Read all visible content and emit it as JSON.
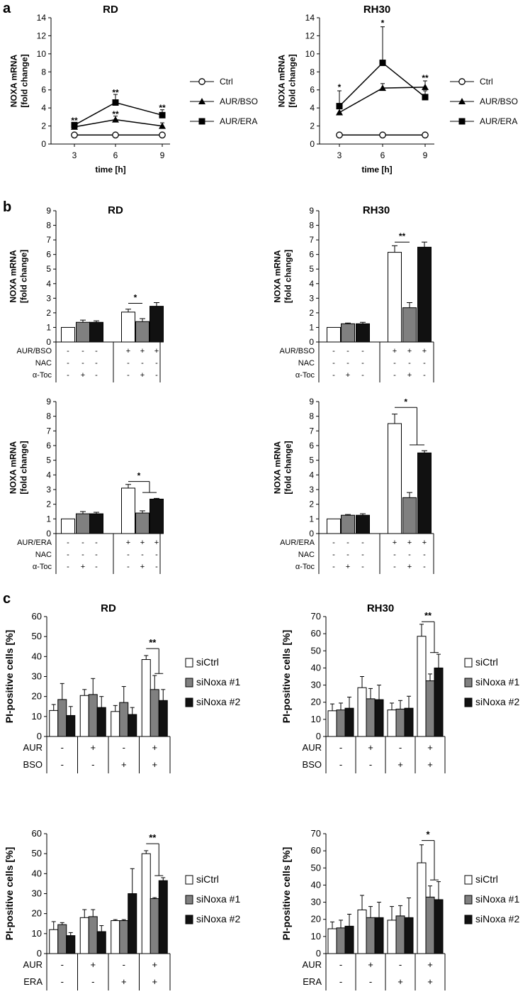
{
  "panel_labels": [
    "a",
    "b",
    "c"
  ],
  "chart_data": [
    {
      "id": "a-rd",
      "panel": "a",
      "type": "line",
      "title": "RD",
      "xlabel": "time [h]",
      "ylabel": [
        "NOXA mRNA",
        "[fold change]"
      ],
      "x": [
        3,
        6,
        9
      ],
      "ylim": [
        0,
        14
      ],
      "yticks": [
        0,
        2,
        4,
        6,
        8,
        10,
        12,
        14
      ],
      "series": [
        {
          "name": "Ctrl",
          "marker": "circle",
          "values": [
            1,
            1,
            1
          ],
          "err": [
            0,
            0,
            0
          ]
        },
        {
          "name": "AUR/BSO",
          "marker": "triangle",
          "values": [
            1.9,
            2.7,
            2.0
          ],
          "err": [
            0.25,
            0.4,
            0.35
          ]
        },
        {
          "name": "AUR/ERA",
          "marker": "square",
          "values": [
            2.1,
            4.6,
            3.2
          ],
          "err": [
            0.3,
            0.9,
            0.6
          ]
        }
      ],
      "annotations": [
        {
          "x": 3,
          "y": 2.6,
          "text": "**"
        },
        {
          "x": 6,
          "y": 5.7,
          "text": "**"
        },
        {
          "x": 6,
          "y": 3.3,
          "text": "**"
        },
        {
          "x": 9,
          "y": 4.0,
          "text": "**"
        }
      ]
    },
    {
      "id": "a-rh30",
      "panel": "a",
      "type": "line",
      "title": "RH30",
      "xlabel": "time [h]",
      "ylabel": [
        "NOXA mRNA",
        "[fold change]"
      ],
      "x": [
        3,
        6,
        9
      ],
      "ylim": [
        0,
        14
      ],
      "yticks": [
        0,
        2,
        4,
        6,
        8,
        10,
        12,
        14
      ],
      "series": [
        {
          "name": "Ctrl",
          "marker": "circle",
          "values": [
            1,
            1,
            1
          ],
          "err": [
            0,
            0,
            0
          ]
        },
        {
          "name": "AUR/BSO",
          "marker": "triangle",
          "values": [
            3.5,
            6.2,
            6.3
          ],
          "err": [
            0.4,
            0.5,
            0.7
          ]
        },
        {
          "name": "AUR/ERA",
          "marker": "square",
          "values": [
            4.2,
            9.0,
            5.2
          ],
          "err": [
            1.7,
            4.0,
            0.7
          ]
        }
      ],
      "annotations": [
        {
          "x": 3,
          "y": 6.3,
          "text": "*"
        },
        {
          "x": 6,
          "y": 13.4,
          "text": "*"
        },
        {
          "x": 9,
          "y": 7.3,
          "text": "**"
        }
      ]
    },
    {
      "id": "b-rd-bso",
      "panel": "b",
      "type": "bar",
      "title": "RD",
      "ylabel": [
        "NOXA mRNA",
        "[fold change]"
      ],
      "ylim": [
        0,
        9
      ],
      "yticks": [
        0,
        1,
        2,
        3,
        4,
        5,
        6,
        7,
        8,
        9
      ],
      "fills": [
        "#ffffff",
        "#808080",
        "#111111",
        "#ffffff",
        "#808080",
        "#111111"
      ],
      "values": [
        1.0,
        1.35,
        1.35,
        2.05,
        1.4,
        2.45
      ],
      "err": [
        0,
        0.15,
        0.1,
        0.2,
        0.2,
        0.25
      ],
      "rows": [
        {
          "label": "AUR/BSO",
          "cells": [
            "-",
            "-",
            "-",
            "+",
            "+",
            "+"
          ]
        },
        {
          "label": "NAC",
          "cells": [
            "-",
            "-",
            "-",
            "-",
            "-",
            "-"
          ]
        },
        {
          "label": "α-Toc",
          "cells": [
            "-",
            "+",
            "-",
            "-",
            "+",
            "-"
          ]
        }
      ],
      "sig": [
        {
          "from": 3,
          "to": 4,
          "y": 2.65,
          "text": "*"
        }
      ]
    },
    {
      "id": "b-rh30-bso",
      "panel": "b",
      "type": "bar",
      "title": "RH30",
      "ylabel": [
        "NOXA mRNA",
        "[fold change]"
      ],
      "ylim": [
        0,
        9
      ],
      "yticks": [
        0,
        1,
        2,
        3,
        4,
        5,
        6,
        7,
        8,
        9
      ],
      "fills": [
        "#ffffff",
        "#808080",
        "#111111",
        "#ffffff",
        "#808080",
        "#111111"
      ],
      "values": [
        1.0,
        1.25,
        1.25,
        6.15,
        2.35,
        6.5
      ],
      "err": [
        0,
        0.05,
        0.1,
        0.45,
        0.35,
        0.35
      ],
      "rows": [
        {
          "label": "AUR/BSO",
          "cells": [
            "-",
            "-",
            "-",
            "+",
            "+",
            "+"
          ]
        },
        {
          "label": "NAC",
          "cells": [
            "-",
            "-",
            "-",
            "-",
            "-",
            "-"
          ]
        },
        {
          "label": "α-Toc",
          "cells": [
            "-",
            "+",
            "-",
            "-",
            "+",
            "-"
          ]
        }
      ],
      "sig": [
        {
          "from": 3,
          "to": 4,
          "y": 6.85,
          "text": "**"
        }
      ]
    },
    {
      "id": "b-rd-era",
      "panel": "b",
      "type": "bar",
      "title": "",
      "ylabel": [
        "NOXA mRNA",
        "[fold change]"
      ],
      "ylim": [
        0,
        9
      ],
      "yticks": [
        0,
        1,
        2,
        3,
        4,
        5,
        6,
        7,
        8,
        9
      ],
      "fills": [
        "#ffffff",
        "#808080",
        "#111111",
        "#ffffff",
        "#808080",
        "#111111"
      ],
      "values": [
        1.0,
        1.35,
        1.35,
        3.1,
        1.4,
        2.35
      ],
      "err": [
        0,
        0.15,
        0.1,
        0.25,
        0.15,
        0.05
      ],
      "rows": [
        {
          "label": "AUR/ERA",
          "cells": [
            "-",
            "-",
            "-",
            "+",
            "+",
            "+"
          ]
        },
        {
          "label": "NAC",
          "cells": [
            "-",
            "-",
            "-",
            "-",
            "-",
            "-"
          ]
        },
        {
          "label": "α-Toc",
          "cells": [
            "-",
            "+",
            "-",
            "-",
            "+",
            "-"
          ]
        }
      ],
      "sig": [
        {
          "from": 3,
          "to": [
            4,
            5
          ],
          "y": 3.55,
          "text": "*"
        }
      ]
    },
    {
      "id": "b-rh30-era",
      "panel": "b",
      "type": "bar",
      "title": "",
      "ylabel": [
        "NOXA mRNA",
        "[fold change]"
      ],
      "ylim": [
        0,
        9
      ],
      "yticks": [
        0,
        1,
        2,
        3,
        4,
        5,
        6,
        7,
        8,
        9
      ],
      "fills": [
        "#ffffff",
        "#808080",
        "#111111",
        "#ffffff",
        "#808080",
        "#111111"
      ],
      "values": [
        1.0,
        1.25,
        1.25,
        7.5,
        2.45,
        5.5
      ],
      "err": [
        0,
        0.05,
        0.1,
        0.65,
        0.35,
        0.15
      ],
      "rows": [
        {
          "label": "AUR/ERA",
          "cells": [
            "-",
            "-",
            "-",
            "+",
            "+",
            "+"
          ]
        },
        {
          "label": "NAC",
          "cells": [
            "-",
            "-",
            "-",
            "-",
            "-",
            "-"
          ]
        },
        {
          "label": "α-Toc",
          "cells": [
            "-",
            "+",
            "-",
            "-",
            "+",
            "-"
          ]
        }
      ],
      "sig": [
        {
          "from": 3,
          "to": [
            4,
            5
          ],
          "y": 8.6,
          "text": "*"
        }
      ]
    },
    {
      "id": "c-rd-bso",
      "panel": "c",
      "type": "bar",
      "title": "RD",
      "ylabel": [
        "PI-positive cells [%]"
      ],
      "ylim": [
        0,
        60
      ],
      "yticks": [
        0,
        10,
        20,
        30,
        40,
        50,
        60
      ],
      "series": [
        {
          "name": "siCtrl",
          "fill": "#ffffff",
          "values": [
            13,
            20.5,
            12.5,
            38.5
          ],
          "err": [
            3,
            3,
            3,
            2
          ]
        },
        {
          "name": "siNoxa #1",
          "fill": "#808080",
          "values": [
            18.5,
            21,
            17,
            23.5
          ],
          "err": [
            8,
            8,
            8,
            7
          ]
        },
        {
          "name": "siNoxa #2",
          "fill": "#111111",
          "values": [
            10.5,
            14.5,
            11,
            18
          ],
          "err": [
            4.5,
            5.5,
            3.5,
            5.5
          ]
        }
      ],
      "rows": [
        {
          "label": "AUR",
          "cells": [
            "-",
            "+",
            "-",
            "+"
          ]
        },
        {
          "label": "BSO",
          "cells": [
            "-",
            "-",
            "+",
            "+"
          ]
        }
      ],
      "sig": [
        {
          "group": 3,
          "y": 44,
          "text": "**"
        }
      ]
    },
    {
      "id": "c-rh30-bso",
      "panel": "c",
      "type": "bar",
      "title": "RH30",
      "ylabel": [
        "PI-positive cells [%]"
      ],
      "ylim": [
        0,
        70
      ],
      "yticks": [
        0,
        10,
        20,
        30,
        40,
        50,
        60,
        70
      ],
      "series": [
        {
          "name": "siCtrl",
          "fill": "#ffffff",
          "values": [
            15,
            28.5,
            15.5,
            58.5
          ],
          "err": [
            4,
            6.5,
            4,
            7
          ]
        },
        {
          "name": "siNoxa #1",
          "fill": "#808080",
          "values": [
            15.5,
            22,
            16,
            32.5
          ],
          "err": [
            4,
            6,
            5,
            4
          ]
        },
        {
          "name": "siNoxa #2",
          "fill": "#111111",
          "values": [
            16.5,
            21.5,
            16.5,
            40
          ],
          "err": [
            6.5,
            8.5,
            7,
            8
          ]
        }
      ],
      "rows": [
        {
          "label": "AUR",
          "cells": [
            "-",
            "+",
            "-",
            "+"
          ]
        },
        {
          "label": "BSO",
          "cells": [
            "-",
            "-",
            "+",
            "+"
          ]
        }
      ],
      "sig": [
        {
          "group": 3,
          "y": 67,
          "text": "**"
        }
      ]
    },
    {
      "id": "c-rd-era",
      "panel": "c",
      "type": "bar",
      "title": "",
      "ylabel": [
        "PI-positive cells [%]"
      ],
      "ylim": [
        0,
        60
      ],
      "yticks": [
        0,
        10,
        20,
        30,
        40,
        50,
        60
      ],
      "series": [
        {
          "name": "siCtrl",
          "fill": "#ffffff",
          "values": [
            12,
            18,
            16.5,
            50
          ],
          "err": [
            4,
            4,
            0.5,
            1.5
          ]
        },
        {
          "name": "siNoxa #1",
          "fill": "#808080",
          "values": [
            14.5,
            18.5,
            16.5,
            27.5
          ],
          "err": [
            1,
            3.5,
            0.5,
            0.5
          ]
        },
        {
          "name": "siNoxa #2",
          "fill": "#111111",
          "values": [
            9,
            11,
            30,
            36.5
          ],
          "err": [
            1.5,
            3,
            12.5,
            1.5
          ]
        }
      ],
      "rows": [
        {
          "label": "AUR",
          "cells": [
            "-",
            "+",
            "-",
            "+"
          ]
        },
        {
          "label": "ERA",
          "cells": [
            "-",
            "-",
            "+",
            "+"
          ]
        }
      ],
      "sig": [
        {
          "group": 3,
          "y": 55,
          "text": "**"
        }
      ]
    },
    {
      "id": "c-rh30-era",
      "panel": "c",
      "type": "bar",
      "title": "",
      "ylabel": [
        "PI-positive cells [%]"
      ],
      "ylim": [
        0,
        70
      ],
      "yticks": [
        0,
        10,
        20,
        30,
        40,
        50,
        60,
        70
      ],
      "series": [
        {
          "name": "siCtrl",
          "fill": "#ffffff",
          "values": [
            14.5,
            25.5,
            19.5,
            53
          ],
          "err": [
            4,
            8.5,
            8,
            10.5
          ]
        },
        {
          "name": "siNoxa #1",
          "fill": "#808080",
          "values": [
            15,
            21,
            22,
            33
          ],
          "err": [
            4.5,
            6.5,
            6,
            6.5
          ]
        },
        {
          "name": "siNoxa #2",
          "fill": "#111111",
          "values": [
            16,
            21,
            21,
            31.5
          ],
          "err": [
            7,
            9,
            11.5,
            10.5
          ]
        }
      ],
      "rows": [
        {
          "label": "AUR",
          "cells": [
            "-",
            "+",
            "-",
            "+"
          ]
        },
        {
          "label": "ERA",
          "cells": [
            "-",
            "-",
            "+",
            "+"
          ]
        }
      ],
      "sig": [
        {
          "group": 3,
          "y": 66,
          "text": "*"
        }
      ]
    }
  ]
}
